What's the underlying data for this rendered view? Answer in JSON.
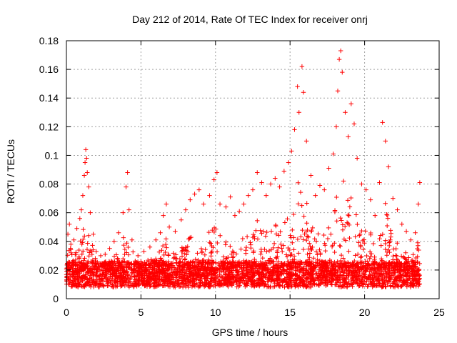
{
  "chart_data": {
    "type": "scatter",
    "title": "Day 212 of 2014, Rate Of TEC Index for receiver onrj",
    "xlabel": "GPS time / hours",
    "ylabel": "ROTI / TECUs",
    "xlim": [
      0,
      25
    ],
    "ylim": [
      0,
      0.18
    ],
    "xticks": [
      0,
      5,
      10,
      15,
      20,
      25
    ],
    "xtick_labels": [
      "0",
      "5",
      "10",
      "15",
      "20",
      "25"
    ],
    "yticks": [
      0,
      0.02,
      0.04,
      0.06,
      0.08,
      0.1,
      0.12,
      0.14,
      0.16,
      0.18
    ],
    "ytick_labels": [
      "0",
      "0.02",
      "0.04",
      "0.06",
      "0.08",
      "0.1",
      "0.12",
      "0.14",
      "0.16",
      "0.18"
    ],
    "grid": true,
    "marker": "plus",
    "color": "#ff0000",
    "series": [
      {
        "name": "ROTI",
        "points": [
          [
            0.1,
            0.045
          ],
          [
            0.2,
            0.052
          ],
          [
            0.3,
            0.038
          ],
          [
            0.5,
            0.041
          ],
          [
            0.7,
            0.049
          ],
          [
            0.9,
            0.056
          ],
          [
            1.0,
            0.062
          ],
          [
            1.1,
            0.072
          ],
          [
            1.2,
            0.086
          ],
          [
            1.25,
            0.095
          ],
          [
            1.3,
            0.104
          ],
          [
            1.35,
            0.098
          ],
          [
            1.4,
            0.088
          ],
          [
            1.5,
            0.078
          ],
          [
            1.6,
            0.06
          ],
          [
            1.8,
            0.045
          ],
          [
            2.0,
            0.033
          ],
          [
            2.3,
            0.03
          ],
          [
            2.6,
            0.031
          ],
          [
            2.9,
            0.035
          ],
          [
            3.2,
            0.04
          ],
          [
            3.5,
            0.046
          ],
          [
            3.8,
            0.06
          ],
          [
            4.0,
            0.078
          ],
          [
            4.1,
            0.088
          ],
          [
            4.2,
            0.062
          ],
          [
            4.4,
            0.041
          ],
          [
            4.8,
            0.03
          ],
          [
            5.2,
            0.033
          ],
          [
            5.6,
            0.036
          ],
          [
            6.0,
            0.041
          ],
          [
            6.3,
            0.046
          ],
          [
            6.5,
            0.058
          ],
          [
            6.7,
            0.066
          ],
          [
            6.9,
            0.05
          ],
          [
            7.3,
            0.047
          ],
          [
            7.7,
            0.055
          ],
          [
            8.0,
            0.062
          ],
          [
            8.3,
            0.069
          ],
          [
            8.6,
            0.073
          ],
          [
            8.9,
            0.076
          ],
          [
            9.2,
            0.066
          ],
          [
            9.6,
            0.072
          ],
          [
            9.9,
            0.083
          ],
          [
            10.1,
            0.088
          ],
          [
            10.3,
            0.066
          ],
          [
            10.7,
            0.064
          ],
          [
            11.0,
            0.071
          ],
          [
            11.3,
            0.058
          ],
          [
            11.6,
            0.061
          ],
          [
            11.9,
            0.066
          ],
          [
            12.2,
            0.072
          ],
          [
            12.5,
            0.076
          ],
          [
            12.8,
            0.088
          ],
          [
            13.1,
            0.081
          ],
          [
            13.4,
            0.072
          ],
          [
            13.7,
            0.08
          ],
          [
            14.0,
            0.084
          ],
          [
            14.3,
            0.078
          ],
          [
            14.6,
            0.089
          ],
          [
            14.9,
            0.095
          ],
          [
            15.1,
            0.103
          ],
          [
            15.3,
            0.118
          ],
          [
            15.5,
            0.148
          ],
          [
            15.6,
            0.13
          ],
          [
            15.8,
            0.162
          ],
          [
            15.9,
            0.144
          ],
          [
            16.1,
            0.11
          ],
          [
            16.4,
            0.086
          ],
          [
            16.7,
            0.072
          ],
          [
            17.0,
            0.079
          ],
          [
            17.3,
            0.076
          ],
          [
            17.6,
            0.091
          ],
          [
            17.9,
            0.101
          ],
          [
            18.1,
            0.12
          ],
          [
            18.2,
            0.145
          ],
          [
            18.3,
            0.167
          ],
          [
            18.4,
            0.173
          ],
          [
            18.5,
            0.158
          ],
          [
            18.7,
            0.13
          ],
          [
            18.9,
            0.113
          ],
          [
            19.1,
            0.136
          ],
          [
            19.3,
            0.122
          ],
          [
            19.5,
            0.098
          ],
          [
            19.8,
            0.08
          ],
          [
            20.1,
            0.076
          ],
          [
            20.4,
            0.069
          ],
          [
            20.7,
            0.058
          ],
          [
            21.0,
            0.081
          ],
          [
            21.2,
            0.123
          ],
          [
            21.4,
            0.11
          ],
          [
            21.6,
            0.092
          ],
          [
            21.9,
            0.07
          ],
          [
            22.2,
            0.062
          ],
          [
            22.5,
            0.052
          ],
          [
            22.8,
            0.047
          ],
          [
            23.1,
            0.041
          ],
          [
            23.4,
            0.046
          ],
          [
            23.6,
            0.066
          ],
          [
            23.7,
            0.081
          ]
        ]
      }
    ]
  }
}
